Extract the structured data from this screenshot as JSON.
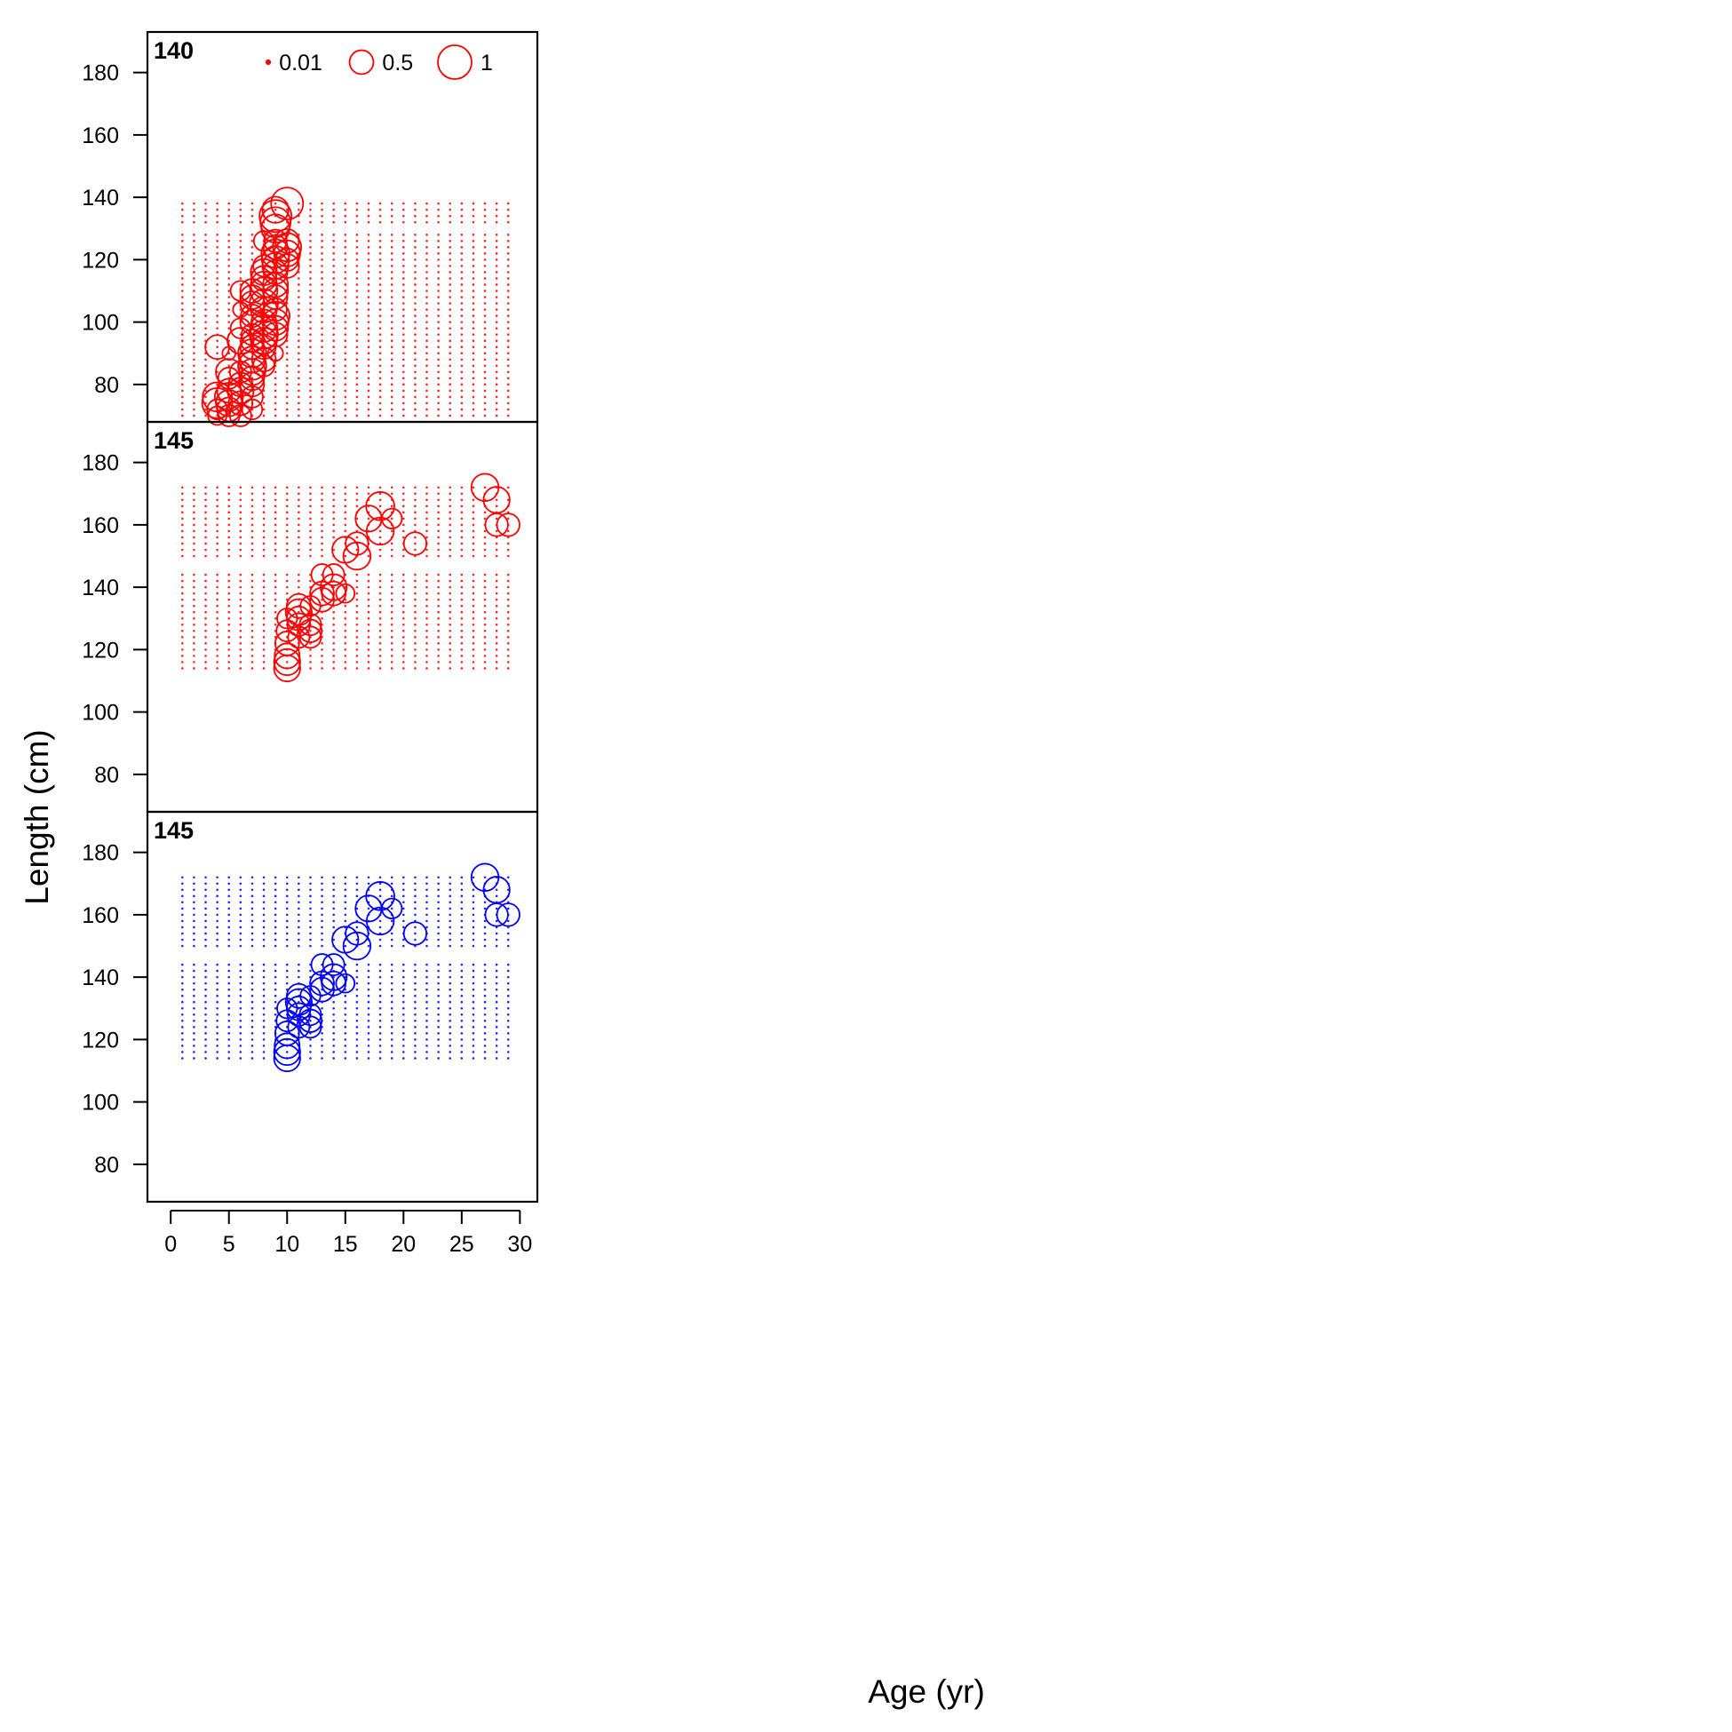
{
  "chart_data": {
    "type": "scatter",
    "subtype": "bubble",
    "xlabel": "Age (yr)",
    "ylabel": "Length (cm)",
    "xlim": [
      -2,
      31.5
    ],
    "ylim": [
      68,
      193
    ],
    "x_ticks": [
      0,
      5,
      10,
      15,
      20,
      25,
      30
    ],
    "y_ticks": [
      80,
      100,
      120,
      140,
      160,
      180
    ],
    "legend": {
      "position": "top",
      "entries": [
        {
          "label": "0.01",
          "size_value": 0.01
        },
        {
          "label": "0.5",
          "size_value": 0.5
        },
        {
          "label": "1",
          "size_value": 1
        }
      ]
    },
    "panels": [
      {
        "label": "140",
        "color": "#ff0000",
        "grid": {
          "age_min": 1,
          "age_max": 29,
          "age_step": 1,
          "lengths": [
            70,
            72,
            74,
            76,
            78,
            80,
            82,
            84,
            86,
            88,
            90,
            92,
            94,
            96,
            98,
            100,
            102,
            104,
            106,
            108,
            110,
            112,
            114,
            116,
            118,
            120,
            122,
            124,
            126,
            128,
            132,
            134,
            136,
            138
          ]
        },
        "points": [
          [
            4,
            70,
            0.3
          ],
          [
            4,
            72,
            0.35
          ],
          [
            4,
            74,
            0.8
          ],
          [
            4,
            76,
            0.75
          ],
          [
            4,
            92,
            0.5
          ],
          [
            5,
            70,
            0.4
          ],
          [
            5,
            72,
            0.5
          ],
          [
            5,
            74,
            0.6
          ],
          [
            5,
            76,
            0.7
          ],
          [
            5,
            78,
            0.5
          ],
          [
            5,
            82,
            0.4
          ],
          [
            5,
            84,
            0.6
          ],
          [
            5,
            90,
            0.15
          ],
          [
            6,
            70,
            0.4
          ],
          [
            6,
            74,
            0.5
          ],
          [
            6,
            78,
            0.6
          ],
          [
            6,
            80,
            0.5
          ],
          [
            6,
            84,
            0.4
          ],
          [
            6,
            94,
            0.6
          ],
          [
            6,
            98,
            0.35
          ],
          [
            6,
            104,
            0.2
          ],
          [
            6,
            110,
            0.35
          ],
          [
            7,
            72,
            0.35
          ],
          [
            7,
            76,
            0.4
          ],
          [
            7,
            80,
            0.5
          ],
          [
            7,
            82,
            0.5
          ],
          [
            7,
            84,
            0.6
          ],
          [
            7,
            86,
            0.7
          ],
          [
            7,
            88,
            0.6
          ],
          [
            7,
            90,
            0.7
          ],
          [
            7,
            92,
            0.5
          ],
          [
            7,
            94,
            0.45
          ],
          [
            7,
            96,
            0.4
          ],
          [
            7,
            100,
            0.5
          ],
          [
            7,
            102,
            0.45
          ],
          [
            7,
            106,
            0.5
          ],
          [
            7,
            108,
            0.5
          ],
          [
            7,
            110,
            0.5
          ],
          [
            8,
            86,
            0.4
          ],
          [
            8,
            88,
            0.5
          ],
          [
            8,
            92,
            0.5
          ],
          [
            8,
            94,
            0.6
          ],
          [
            8,
            96,
            0.7
          ],
          [
            8,
            98,
            0.65
          ],
          [
            8,
            100,
            0.55
          ],
          [
            8,
            104,
            0.6
          ],
          [
            8,
            106,
            0.7
          ],
          [
            8,
            110,
            0.65
          ],
          [
            8,
            112,
            0.6
          ],
          [
            8,
            114,
            0.55
          ],
          [
            8,
            116,
            0.6
          ],
          [
            8,
            118,
            0.4
          ],
          [
            8,
            126,
            0.35
          ],
          [
            9,
            90,
            0.2
          ],
          [
            9,
            96,
            0.5
          ],
          [
            9,
            98,
            0.55
          ],
          [
            9,
            100,
            0.6
          ],
          [
            9,
            102,
            0.7
          ],
          [
            9,
            104,
            0.45
          ],
          [
            9,
            108,
            0.5
          ],
          [
            9,
            110,
            0.55
          ],
          [
            9,
            112,
            0.55
          ],
          [
            9,
            116,
            0.5
          ],
          [
            9,
            118,
            0.6
          ],
          [
            9,
            120,
            0.65
          ],
          [
            9,
            122,
            0.7
          ],
          [
            9,
            124,
            0.5
          ],
          [
            9,
            126,
            0.45
          ],
          [
            9,
            130,
            0.7
          ],
          [
            9,
            132,
            0.8
          ],
          [
            9,
            134,
            0.9
          ],
          [
            9,
            136,
            0.6
          ],
          [
            10,
            118,
            0.5
          ],
          [
            10,
            120,
            0.45
          ],
          [
            10,
            122,
            0.6
          ],
          [
            10,
            124,
            0.7
          ],
          [
            10,
            126,
            0.5
          ],
          [
            10,
            138,
            0.9
          ]
        ]
      },
      {
        "label": "145",
        "color": "#ff0000",
        "grid": {
          "age_min": 1,
          "age_max": 29,
          "age_step": 1,
          "lengths": [
            114,
            116,
            118,
            120,
            122,
            124,
            126,
            128,
            130,
            132,
            134,
            136,
            138,
            140,
            142,
            144,
            150,
            152,
            154,
            156,
            158,
            160,
            162,
            164,
            166,
            168,
            170,
            172
          ]
        },
        "points": [
          [
            10,
            114,
            0.6
          ],
          [
            10,
            116,
            0.6
          ],
          [
            10,
            118,
            0.55
          ],
          [
            10,
            122,
            0.5
          ],
          [
            10,
            126,
            0.4
          ],
          [
            10,
            130,
            0.35
          ],
          [
            11,
            124,
            0.4
          ],
          [
            11,
            128,
            0.45
          ],
          [
            11,
            130,
            0.5
          ],
          [
            11,
            132,
            0.6
          ],
          [
            11,
            134,
            0.5
          ],
          [
            12,
            124,
            0.4
          ],
          [
            12,
            126,
            0.45
          ],
          [
            12,
            128,
            0.4
          ],
          [
            12,
            134,
            0.35
          ],
          [
            13,
            136,
            0.5
          ],
          [
            13,
            138,
            0.5
          ],
          [
            13,
            144,
            0.4
          ],
          [
            14,
            138,
            0.5
          ],
          [
            14,
            140,
            0.6
          ],
          [
            14,
            144,
            0.4
          ],
          [
            15,
            138,
            0.3
          ],
          [
            15,
            152,
            0.6
          ],
          [
            16,
            150,
            0.65
          ],
          [
            16,
            154,
            0.45
          ],
          [
            17,
            162,
            0.6
          ],
          [
            18,
            158,
            0.65
          ],
          [
            18,
            166,
            0.7
          ],
          [
            19,
            162,
            0.35
          ],
          [
            21,
            154,
            0.45
          ],
          [
            27,
            172,
            0.65
          ],
          [
            28,
            160,
            0.45
          ],
          [
            28,
            168,
            0.6
          ],
          [
            29,
            160,
            0.45
          ]
        ]
      },
      {
        "label": "145",
        "color": "#0000ff",
        "grid": {
          "age_min": 1,
          "age_max": 29,
          "age_step": 1,
          "lengths": [
            114,
            116,
            118,
            120,
            122,
            124,
            126,
            128,
            130,
            132,
            134,
            136,
            138,
            140,
            142,
            144,
            150,
            152,
            154,
            156,
            158,
            160,
            162,
            164,
            166,
            168,
            170,
            172
          ]
        },
        "points": [
          [
            10,
            114,
            0.6
          ],
          [
            10,
            116,
            0.6
          ],
          [
            10,
            118,
            0.55
          ],
          [
            10,
            122,
            0.5
          ],
          [
            10,
            126,
            0.4
          ],
          [
            10,
            130,
            0.35
          ],
          [
            11,
            124,
            0.4
          ],
          [
            11,
            128,
            0.45
          ],
          [
            11,
            130,
            0.5
          ],
          [
            11,
            132,
            0.6
          ],
          [
            11,
            134,
            0.5
          ],
          [
            12,
            124,
            0.4
          ],
          [
            12,
            126,
            0.45
          ],
          [
            12,
            128,
            0.4
          ],
          [
            12,
            134,
            0.35
          ],
          [
            13,
            136,
            0.5
          ],
          [
            13,
            138,
            0.5
          ],
          [
            13,
            144,
            0.4
          ],
          [
            14,
            138,
            0.5
          ],
          [
            14,
            140,
            0.6
          ],
          [
            14,
            144,
            0.4
          ],
          [
            15,
            138,
            0.3
          ],
          [
            15,
            152,
            0.6
          ],
          [
            16,
            150,
            0.65
          ],
          [
            16,
            154,
            0.45
          ],
          [
            17,
            162,
            0.6
          ],
          [
            18,
            158,
            0.65
          ],
          [
            18,
            166,
            0.7
          ],
          [
            19,
            162,
            0.35
          ],
          [
            21,
            154,
            0.45
          ],
          [
            27,
            172,
            0.65
          ],
          [
            28,
            160,
            0.45
          ],
          [
            28,
            168,
            0.6
          ],
          [
            29,
            160,
            0.45
          ]
        ]
      }
    ]
  }
}
